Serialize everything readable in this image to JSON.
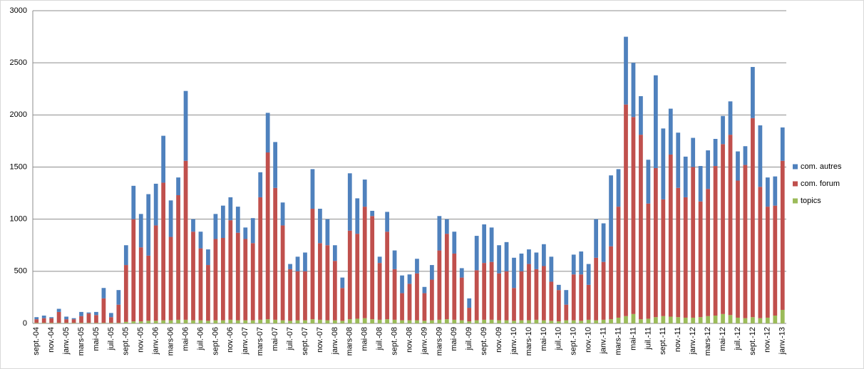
{
  "chart_data": {
    "type": "stacked-bar",
    "categories": [
      "sept.-04",
      null,
      "nov.-04",
      null,
      "janv.-05",
      null,
      "mars-05",
      null,
      "mai-05",
      null,
      "juil.-05",
      null,
      "sept.-05",
      null,
      "nov.-05",
      null,
      "janv.-06",
      null,
      "mars-06",
      null,
      "mai-06",
      null,
      "juil.-06",
      null,
      "sept.-06",
      null,
      "nov.-06",
      null,
      "janv.-07",
      null,
      "mars-07",
      null,
      "mai-07",
      null,
      "juil.-07",
      null,
      "sept.-07",
      null,
      "nov.-07",
      null,
      "janv.-08",
      null,
      "mars-08",
      null,
      "mai-08",
      null,
      "juil.-08",
      null,
      "sept.-08",
      null,
      "nov.-08",
      null,
      "janv.-09",
      null,
      "mars-09",
      null,
      "mai-09",
      null,
      "juil.-09",
      null,
      "sept.-09",
      null,
      "nov.-09",
      null,
      "janv.-10",
      null,
      "mars-10",
      null,
      "mai-10",
      null,
      "juil.-10",
      null,
      "sept.-10",
      null,
      "nov.-10",
      null,
      "janv.-11",
      null,
      "mars-11",
      null,
      "mai-11",
      null,
      "juil.-11",
      null,
      "sept.-11",
      null,
      "nov.-11",
      null,
      "janv.-12",
      null,
      "mars-12",
      null,
      "mai-12",
      null,
      "juil.-12",
      null,
      "sept.-12",
      null,
      "nov.-12",
      null,
      "janv.-13"
    ],
    "series": [
      {
        "name": "topics",
        "color": "#9bbb59",
        "values": [
          5,
          5,
          5,
          5,
          5,
          5,
          5,
          5,
          5,
          5,
          5,
          5,
          15,
          20,
          20,
          25,
          25,
          30,
          30,
          35,
          35,
          30,
          30,
          25,
          30,
          30,
          35,
          30,
          30,
          30,
          35,
          40,
          35,
          30,
          25,
          30,
          30,
          40,
          35,
          30,
          30,
          25,
          40,
          45,
          50,
          40,
          35,
          40,
          35,
          30,
          30,
          30,
          25,
          30,
          35,
          40,
          35,
          30,
          20,
          30,
          35,
          35,
          30,
          30,
          25,
          30,
          30,
          35,
          30,
          25,
          20,
          30,
          30,
          25,
          35,
          30,
          35,
          40,
          55,
          70,
          90,
          40,
          45,
          60,
          70,
          65,
          60,
          55,
          55,
          60,
          70,
          75,
          90,
          80,
          55,
          50,
          60,
          50,
          55,
          75,
          130
        ]
      },
      {
        "name": "com. forum",
        "color": "#c0504d",
        "values": [
          35,
          45,
          45,
          105,
          35,
          35,
          65,
          90,
          75,
          235,
          55,
          175,
          545,
          980,
          710,
          625,
          915,
          1320,
          800,
          1195,
          1525,
          850,
          690,
          535,
          780,
          790,
          955,
          840,
          780,
          740,
          1175,
          1600,
          1265,
          910,
          495,
          470,
          470,
          1060,
          735,
          720,
          570,
          315,
          850,
          815,
          1070,
          990,
          545,
          840,
          485,
          260,
          350,
          450,
          265,
          390,
          665,
          820,
          635,
          410,
          130,
          480,
          545,
          555,
          450,
          470,
          315,
          470,
          540,
          485,
          520,
          375,
          300,
          150,
          440,
          445,
          335,
          600,
          555,
          700,
          1065,
          2030,
          1890,
          1770,
          1105,
          1430,
          1120,
          1555,
          1240,
          1155,
          1445,
          1110,
          1220,
          1435,
          1630,
          1730,
          1315,
          1470,
          1910,
          1260,
          1065,
          1055,
          1430
        ]
      },
      {
        "name": "com. autres",
        "color": "#4f81bd",
        "values": [
          20,
          25,
          10,
          30,
          25,
          10,
          40,
          10,
          30,
          100,
          40,
          140,
          190,
          320,
          320,
          590,
          400,
          450,
          350,
          170,
          670,
          120,
          160,
          150,
          240,
          310,
          220,
          250,
          110,
          240,
          240,
          380,
          440,
          220,
          50,
          140,
          180,
          380,
          330,
          250,
          150,
          100,
          550,
          340,
          260,
          50,
          60,
          190,
          180,
          170,
          90,
          140,
          60,
          140,
          330,
          140,
          210,
          90,
          90,
          330,
          370,
          330,
          270,
          280,
          290,
          170,
          140,
          160,
          210,
          240,
          50,
          140,
          190,
          220,
          200,
          370,
          370,
          680,
          360,
          650,
          520,
          370,
          420,
          890,
          680,
          440,
          530,
          390,
          280,
          340,
          370,
          260,
          270,
          320,
          280,
          180,
          490,
          590,
          280,
          280,
          320
        ]
      }
    ],
    "ylim": [
      0,
      3000
    ],
    "yticks": [
      0,
      500,
      1000,
      1500,
      2000,
      2500,
      3000
    ],
    "grid": true,
    "legend": "right"
  }
}
